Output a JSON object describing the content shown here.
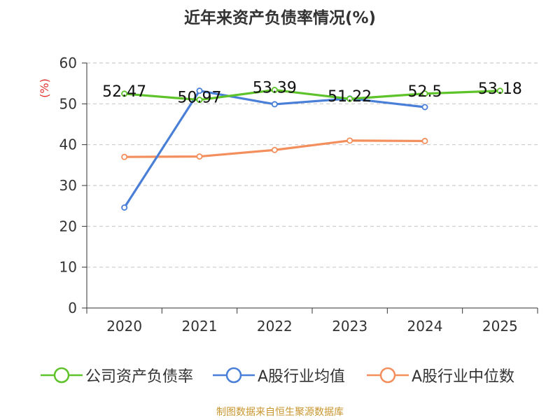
{
  "title": "近年来资产负债率情况(%)",
  "source": "制图数据来自恒生聚源数据库",
  "colors": {
    "series": [
      "#5ec32a",
      "#4a7fd8",
      "#f38f5d"
    ],
    "grid": "#cccccc",
    "axis": "#333333",
    "ylabel": "#e03030"
  },
  "chart_data": {
    "type": "line",
    "title": "近年来资产负债率情况(%)",
    "xlabel": "",
    "ylabel": "(%)",
    "categories": [
      "2020",
      "2021",
      "2022",
      "2023",
      "2024",
      "2025"
    ],
    "ylim": [
      0,
      60
    ],
    "yticks": [
      0,
      10,
      20,
      30,
      40,
      50,
      60
    ],
    "grid": true,
    "legend_position": "bottom",
    "series": [
      {
        "name": "公司资产负债率",
        "values": [
          52.47,
          50.97,
          53.39,
          51.22,
          52.5,
          53.18
        ],
        "labels": [
          "52.47",
          "50.97",
          "53.39",
          "51.22",
          "52.5",
          "53.18"
        ]
      },
      {
        "name": "A股行业均值",
        "values": [
          24.6,
          53.2,
          49.9,
          51.3,
          49.2,
          null
        ]
      },
      {
        "name": "A股行业中位数",
        "values": [
          37.0,
          37.1,
          38.7,
          41.0,
          40.9,
          null
        ]
      }
    ]
  }
}
